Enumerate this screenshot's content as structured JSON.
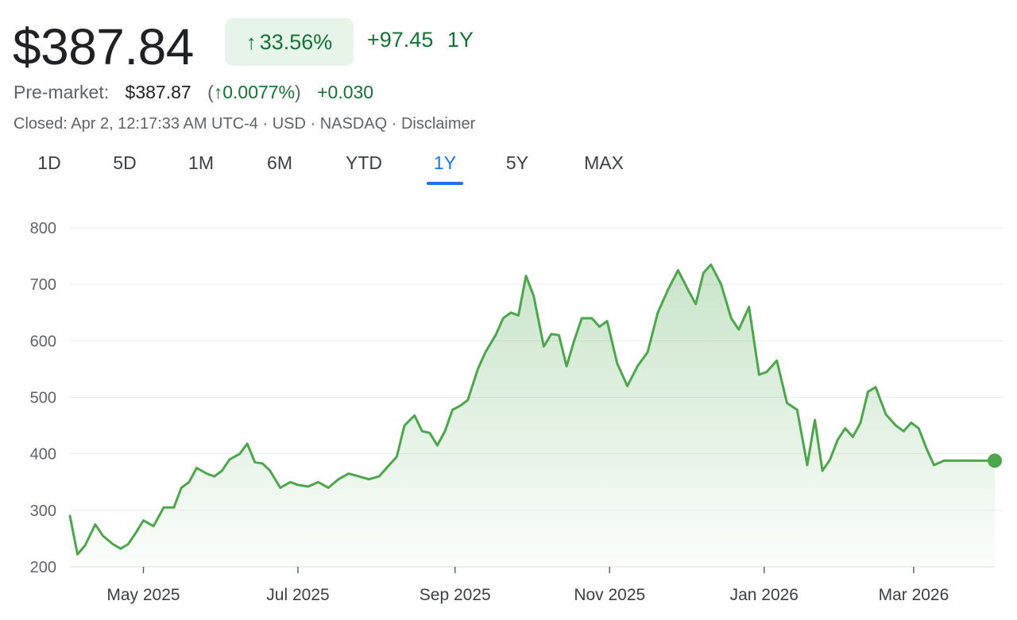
{
  "quote": {
    "price": "$387.84",
    "change_pct": "33.56%",
    "change_abs": "+97.45",
    "period": "1Y",
    "premarket_label": "Pre-market:",
    "premarket_price": "$387.87",
    "premarket_open_paren": "(",
    "premarket_pct": "0.0077%",
    "premarket_close_paren": ")",
    "premarket_abs": "+0.030",
    "meta": "Closed: Apr 2, 12:17:33 AM UTC-4 · USD · NASDAQ · Disclaimer",
    "up_icon": "arrow-up-icon"
  },
  "colors": {
    "up": "#137333",
    "line": "#4ca64c",
    "badge_bg": "#e6f4ea",
    "active_tab": "#1a73e8"
  },
  "tabs": [
    {
      "label": "1D",
      "active": false
    },
    {
      "label": "5D",
      "active": false
    },
    {
      "label": "1M",
      "active": false
    },
    {
      "label": "6M",
      "active": false
    },
    {
      "label": "YTD",
      "active": false
    },
    {
      "label": "1Y",
      "active": true
    },
    {
      "label": "5Y",
      "active": false
    },
    {
      "label": "MAX",
      "active": false
    }
  ],
  "chart_data": {
    "type": "area",
    "title": "",
    "xlabel": "",
    "ylabel": "",
    "ylim": [
      200,
      800
    ],
    "yticks": [
      200,
      300,
      400,
      500,
      600,
      700,
      800
    ],
    "grid": true,
    "x_start": "2025-04-02",
    "x_end": "2026-04-02",
    "xticks": [
      {
        "label": "May 2025",
        "date": "2025-05-01"
      },
      {
        "label": "Jul 2025",
        "date": "2025-07-01"
      },
      {
        "label": "Sep 2025",
        "date": "2025-09-01"
      },
      {
        "label": "Nov 2025",
        "date": "2025-11-01"
      },
      {
        "label": "Jan 2026",
        "date": "2026-01-01"
      },
      {
        "label": "Mar 2026",
        "date": "2026-03-01"
      }
    ],
    "series": [
      {
        "x": [
          "2025-04-02",
          "2025-04-05",
          "2025-04-08",
          "2025-04-12",
          "2025-04-15",
          "2025-04-19",
          "2025-04-22",
          "2025-04-25",
          "2025-04-28",
          "2025-05-01",
          "2025-05-05",
          "2025-05-09",
          "2025-05-13",
          "2025-05-16",
          "2025-05-19",
          "2025-05-22",
          "2025-05-26",
          "2025-05-29",
          "2025-06-01",
          "2025-06-04",
          "2025-06-08",
          "2025-06-11",
          "2025-06-14",
          "2025-06-17",
          "2025-06-20",
          "2025-06-24",
          "2025-06-28",
          "2025-07-01",
          "2025-07-05",
          "2025-07-09",
          "2025-07-13",
          "2025-07-17",
          "2025-07-21",
          "2025-07-25",
          "2025-07-29",
          "2025-08-02",
          "2025-08-06",
          "2025-08-09",
          "2025-08-12",
          "2025-08-16",
          "2025-08-19",
          "2025-08-22",
          "2025-08-25",
          "2025-08-28",
          "2025-08-31",
          "2025-09-03",
          "2025-09-06",
          "2025-09-10",
          "2025-09-13",
          "2025-09-17",
          "2025-09-20",
          "2025-09-23",
          "2025-09-26",
          "2025-09-29",
          "2025-10-02",
          "2025-10-06",
          "2025-10-09",
          "2025-10-12",
          "2025-10-15",
          "2025-10-18",
          "2025-10-21",
          "2025-10-25",
          "2025-10-28",
          "2025-10-31",
          "2025-11-04",
          "2025-11-08",
          "2025-11-12",
          "2025-11-16",
          "2025-11-20",
          "2025-11-24",
          "2025-11-28",
          "2025-12-02",
          "2025-12-05",
          "2025-12-08",
          "2025-12-11",
          "2025-12-15",
          "2025-12-19",
          "2025-12-22",
          "2025-12-26",
          "2025-12-30",
          "2026-01-02",
          "2026-01-06",
          "2026-01-10",
          "2026-01-14",
          "2026-01-18",
          "2026-01-21",
          "2026-01-24",
          "2026-01-27",
          "2026-01-30",
          "2026-02-02",
          "2026-02-05",
          "2026-02-08",
          "2026-02-11",
          "2026-02-14",
          "2026-02-18",
          "2026-02-22",
          "2026-02-25",
          "2026-02-28",
          "2026-03-03",
          "2026-03-06",
          "2026-03-09",
          "2026-03-13",
          "2026-03-17",
          "2026-03-21",
          "2026-03-25",
          "2026-03-29",
          "2026-04-02"
        ],
        "values": [
          290,
          222,
          238,
          275,
          255,
          240,
          232,
          240,
          260,
          282,
          272,
          305,
          305,
          340,
          350,
          375,
          365,
          360,
          370,
          390,
          400,
          418,
          385,
          383,
          370,
          340,
          350,
          345,
          342,
          350,
          340,
          355,
          365,
          360,
          355,
          360,
          380,
          395,
          450,
          468,
          440,
          437,
          415,
          440,
          478,
          485,
          495,
          550,
          580,
          610,
          640,
          650,
          645,
          715,
          680,
          590,
          612,
          610,
          555,
          600,
          640,
          640,
          625,
          635,
          560,
          520,
          555,
          580,
          650,
          690,
          725,
          690,
          665,
          720,
          735,
          700,
          640,
          620,
          660,
          540,
          545,
          565,
          490,
          478,
          380,
          460,
          370,
          390,
          425,
          445,
          430,
          455,
          510,
          518,
          470,
          450,
          440,
          455,
          445,
          410,
          380,
          388,
          388,
          388,
          388,
          388,
          388
        ]
      }
    ],
    "last_value": 387.84
  }
}
